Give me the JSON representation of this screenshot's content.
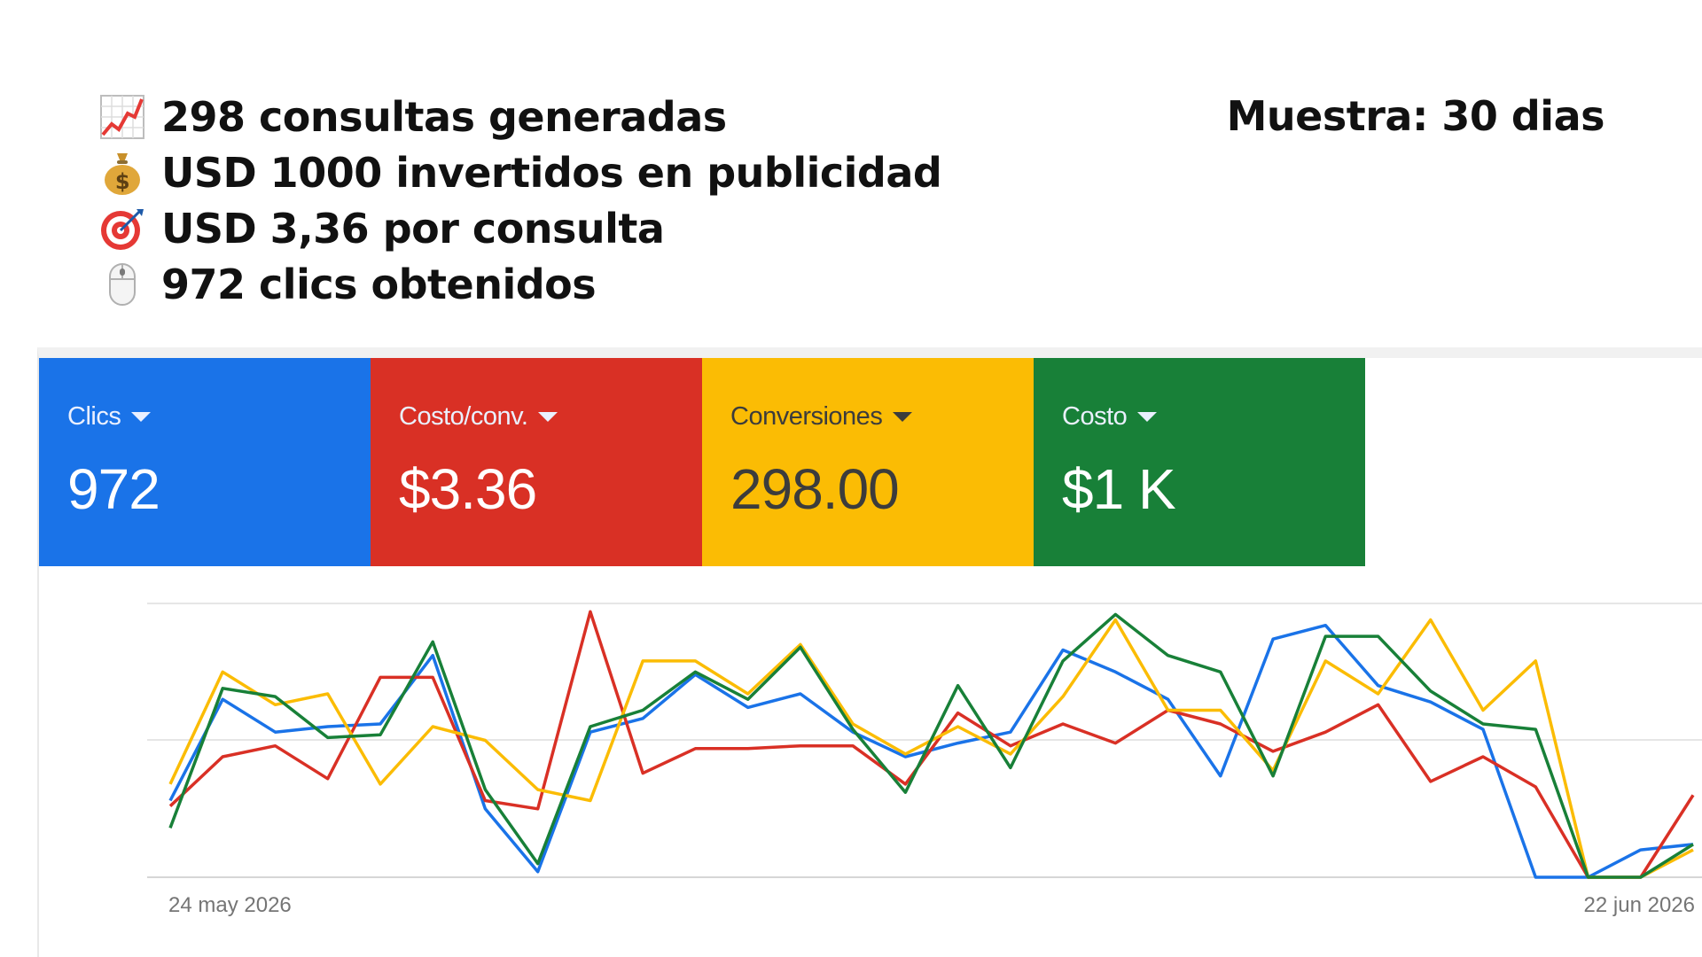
{
  "summary": {
    "lines": [
      {
        "icon": "chart-increasing-icon",
        "text": "298 consultas generadas"
      },
      {
        "icon": "money-bag-icon",
        "text": "USD 1000 invertidos en publicidad"
      },
      {
        "icon": "target-icon",
        "text": "USD 3,36 por consulta"
      },
      {
        "icon": "computer-mouse-icon",
        "text": "972 clics obtenidos"
      }
    ],
    "sample": "Muestra: 30 dias"
  },
  "tiles": [
    {
      "label": "Clics",
      "value": "972",
      "color": "#1a73e8"
    },
    {
      "label": "Costo/conv.",
      "value": "$3.36",
      "color": "#d93025"
    },
    {
      "label": "Conversiones",
      "value": "298.00",
      "color": "#fbbc04"
    },
    {
      "label": "Costo",
      "value": "$1 K",
      "color": "#188038"
    }
  ],
  "chart_data": {
    "type": "line",
    "x_start_label": "24 may 2026",
    "x_end_label": "22 jun 2026",
    "points": 30,
    "ylim": [
      0,
      100
    ],
    "grid": true,
    "series": [
      {
        "color": "#1a73e8",
        "values": [
          28,
          65,
          53,
          55,
          56,
          81,
          25,
          2,
          53,
          58,
          74,
          62,
          67,
          53,
          44,
          49,
          53,
          83,
          75,
          65,
          37,
          87,
          92,
          70,
          64,
          54,
          0,
          0,
          10,
          12
        ]
      },
      {
        "color": "#d93025",
        "values": [
          26,
          44,
          48,
          36,
          73,
          73,
          28,
          25,
          97,
          38,
          47,
          47,
          48,
          48,
          34,
          60,
          48,
          56,
          49,
          61,
          56,
          46,
          53,
          63,
          35,
          44,
          33,
          0,
          0,
          30
        ]
      },
      {
        "color": "#fbbc04",
        "values": [
          34,
          75,
          63,
          67,
          34,
          55,
          50,
          32,
          28,
          79,
          79,
          67,
          85,
          56,
          45,
          55,
          45,
          66,
          94,
          61,
          61,
          39,
          79,
          67,
          94,
          61,
          79,
          0,
          0,
          10
        ]
      },
      {
        "color": "#188038",
        "values": [
          18,
          69,
          66,
          51,
          52,
          86,
          32,
          5,
          55,
          61,
          75,
          65,
          84,
          54,
          31,
          70,
          40,
          79,
          96,
          81,
          75,
          37,
          88,
          88,
          68,
          56,
          54,
          0,
          0,
          12
        ]
      }
    ]
  }
}
